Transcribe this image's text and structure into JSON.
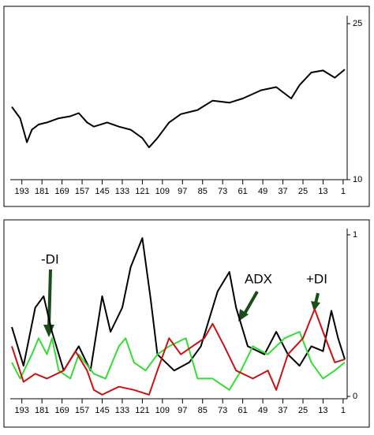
{
  "chart_data": [
    {
      "type": "line",
      "x": [
        199,
        194,
        190,
        187,
        183,
        178,
        171,
        164,
        159,
        154,
        150,
        142,
        135,
        128,
        121,
        117,
        112,
        105,
        98,
        88,
        79,
        69,
        61,
        50,
        41,
        32,
        27,
        20,
        13,
        6,
        0
      ],
      "series": [
        {
          "color": "#000000",
          "values": [
            17.0,
            15.9,
            13.6,
            14.8,
            15.3,
            15.5,
            15.9,
            16.1,
            16.4,
            15.5,
            15.1,
            15.5,
            15.1,
            14.8,
            14.0,
            13.1,
            14.0,
            15.5,
            16.3,
            16.7,
            17.6,
            17.4,
            17.8,
            18.6,
            18.9,
            17.8,
            19.1,
            20.3,
            20.5,
            19.8,
            20.6
          ]
        }
      ],
      "xlim": [
        199,
        0
      ],
      "xticks": [
        193,
        181,
        169,
        157,
        145,
        133,
        121,
        109,
        97,
        85,
        73,
        61,
        49,
        37,
        25,
        13,
        1
      ],
      "ylim": [
        10,
        25
      ],
      "yticks": [
        10,
        25
      ]
    },
    {
      "type": "line",
      "annotations": [
        "-DI",
        "ADX",
        "+DI"
      ],
      "series": [
        {
          "name": "ADX",
          "color": "#000000",
          "x": [
            199,
            192,
            185,
            180,
            175,
            168,
            159,
            152,
            145,
            140,
            133,
            128,
            121,
            116,
            112,
            102,
            93,
            86,
            76,
            69,
            65,
            58,
            48,
            41,
            34,
            27,
            20,
            13,
            8,
            4,
            0
          ],
          "values": [
            0.43,
            0.19,
            0.55,
            0.62,
            0.4,
            0.16,
            0.31,
            0.16,
            0.62,
            0.4,
            0.55,
            0.8,
            0.98,
            0.6,
            0.26,
            0.16,
            0.21,
            0.31,
            0.65,
            0.77,
            0.55,
            0.31,
            0.26,
            0.4,
            0.26,
            0.19,
            0.31,
            0.28,
            0.53,
            0.36,
            0.23
          ]
        },
        {
          "name": "-DI",
          "color": "#33dd33",
          "x": [
            199,
            194,
            187,
            183,
            178,
            175,
            171,
            164,
            159,
            150,
            143,
            135,
            131,
            126,
            119,
            112,
            105,
            95,
            88,
            79,
            69,
            62,
            55,
            46,
            36,
            27,
            20,
            13,
            6,
            0
          ],
          "values": [
            0.21,
            0.11,
            0.26,
            0.36,
            0.26,
            0.36,
            0.16,
            0.11,
            0.26,
            0.14,
            0.11,
            0.31,
            0.36,
            0.21,
            0.16,
            0.26,
            0.31,
            0.36,
            0.11,
            0.11,
            0.04,
            0.16,
            0.31,
            0.26,
            0.36,
            0.4,
            0.21,
            0.11,
            0.16,
            0.21
          ]
        },
        {
          "name": "+DI",
          "color": "#cc1111",
          "x": [
            199,
            192,
            185,
            178,
            168,
            161,
            154,
            150,
            145,
            135,
            126,
            117,
            112,
            105,
            98,
            91,
            84,
            79,
            72,
            65,
            55,
            46,
            41,
            34,
            25,
            18,
            13,
            6,
            0
          ],
          "values": [
            0.31,
            0.09,
            0.14,
            0.11,
            0.16,
            0.28,
            0.16,
            0.04,
            0.01,
            0.06,
            0.04,
            0.01,
            0.16,
            0.36,
            0.26,
            0.31,
            0.36,
            0.45,
            0.31,
            0.16,
            0.11,
            0.16,
            0.04,
            0.26,
            0.36,
            0.54,
            0.4,
            0.21,
            0.23
          ]
        }
      ],
      "xlim": [
        199,
        0
      ],
      "xticks": [
        193,
        181,
        169,
        157,
        145,
        133,
        121,
        109,
        97,
        85,
        73,
        61,
        49,
        37,
        25,
        13,
        1
      ],
      "ylim": [
        0,
        1
      ],
      "yticks": [
        0,
        1
      ]
    }
  ]
}
